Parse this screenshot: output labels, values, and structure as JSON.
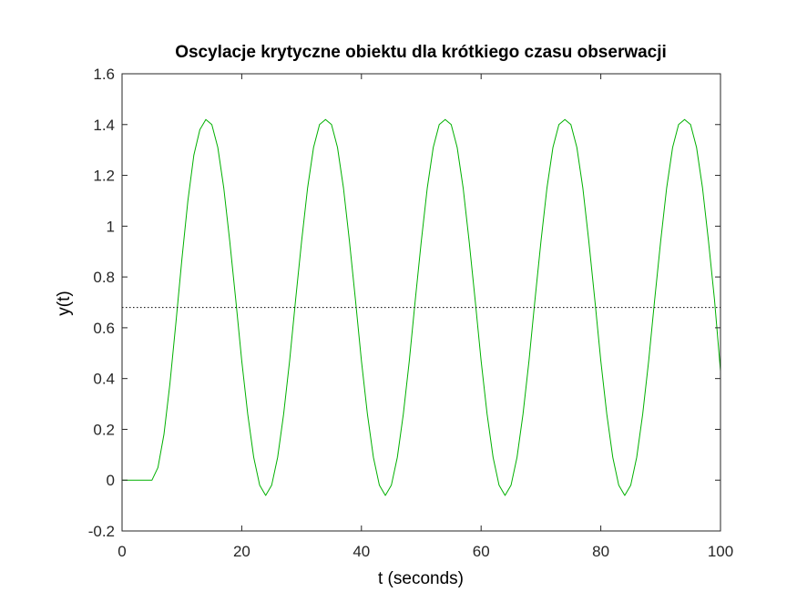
{
  "chart_data": {
    "type": "line",
    "title": "Oscylacje krytyczne obiektu dla krótkiego czasu obserwacji",
    "xlabel": "t (seconds)",
    "ylabel": "y(t)",
    "xlim": [
      0,
      100
    ],
    "ylim": [
      -0.2,
      1.6
    ],
    "xticks": [
      0,
      20,
      40,
      60,
      80,
      100
    ],
    "xtick_labels": [
      "0",
      "20",
      "40",
      "60",
      "80",
      "100"
    ],
    "yticks": [
      -0.2,
      0,
      0.2,
      0.4,
      0.6,
      0.8,
      1,
      1.2,
      1.4,
      1.6
    ],
    "ytick_labels": [
      "-0.2",
      "0",
      "0.2",
      "0.4",
      "0.6",
      "0.8",
      "1",
      "1.2",
      "1.4",
      "1.6"
    ],
    "grid": false,
    "colors": {
      "response": "#00b000",
      "reference": "#000000",
      "axes": "#262626"
    },
    "series": [
      {
        "style": "solid",
        "x": [
          0,
          5,
          6,
          7,
          8,
          9,
          10,
          11,
          12,
          13,
          14,
          15,
          16,
          17,
          18,
          19,
          20,
          21,
          22,
          23,
          24,
          25,
          26,
          27,
          28,
          29,
          30,
          31,
          32,
          33,
          34,
          35,
          36,
          37,
          38,
          39,
          40,
          41,
          42,
          43,
          44,
          45,
          46,
          47,
          48,
          49,
          50,
          51,
          52,
          53,
          54,
          55,
          56,
          57,
          58,
          59,
          60,
          61,
          62,
          63,
          64,
          65,
          66,
          67,
          68,
          69,
          70,
          71,
          72,
          73,
          74,
          75,
          76,
          77,
          78,
          79,
          80,
          81,
          82,
          83,
          84,
          85,
          86,
          87,
          88,
          89,
          90,
          91,
          92,
          93,
          94,
          95,
          96,
          97,
          98,
          99,
          100
        ],
        "y": [
          0,
          0,
          0.05,
          0.18,
          0.38,
          0.62,
          0.87,
          1.1,
          1.28,
          1.38,
          1.42,
          1.4,
          1.31,
          1.15,
          0.94,
          0.71,
          0.47,
          0.26,
          0.09,
          -0.02,
          -0.06,
          -0.02,
          0.09,
          0.26,
          0.47,
          0.71,
          0.94,
          1.15,
          1.31,
          1.4,
          1.42,
          1.4,
          1.31,
          1.15,
          0.94,
          0.71,
          0.47,
          0.26,
          0.09,
          -0.02,
          -0.06,
          -0.02,
          0.09,
          0.26,
          0.47,
          0.71,
          0.94,
          1.15,
          1.31,
          1.4,
          1.42,
          1.4,
          1.31,
          1.15,
          0.94,
          0.71,
          0.47,
          0.26,
          0.09,
          -0.02,
          -0.06,
          -0.02,
          0.09,
          0.26,
          0.47,
          0.71,
          0.94,
          1.15,
          1.31,
          1.4,
          1.42,
          1.4,
          1.31,
          1.15,
          0.94,
          0.71,
          0.47,
          0.26,
          0.09,
          -0.02,
          -0.06,
          -0.02,
          0.09,
          0.26,
          0.47,
          0.71,
          0.94,
          1.15,
          1.31,
          1.4,
          1.42,
          1.4,
          1.31,
          1.15,
          0.94,
          0.71,
          0.43
        ]
      },
      {
        "style": "dotted",
        "x": [
          0,
          100
        ],
        "y": [
          0.68,
          0.68
        ]
      }
    ]
  }
}
